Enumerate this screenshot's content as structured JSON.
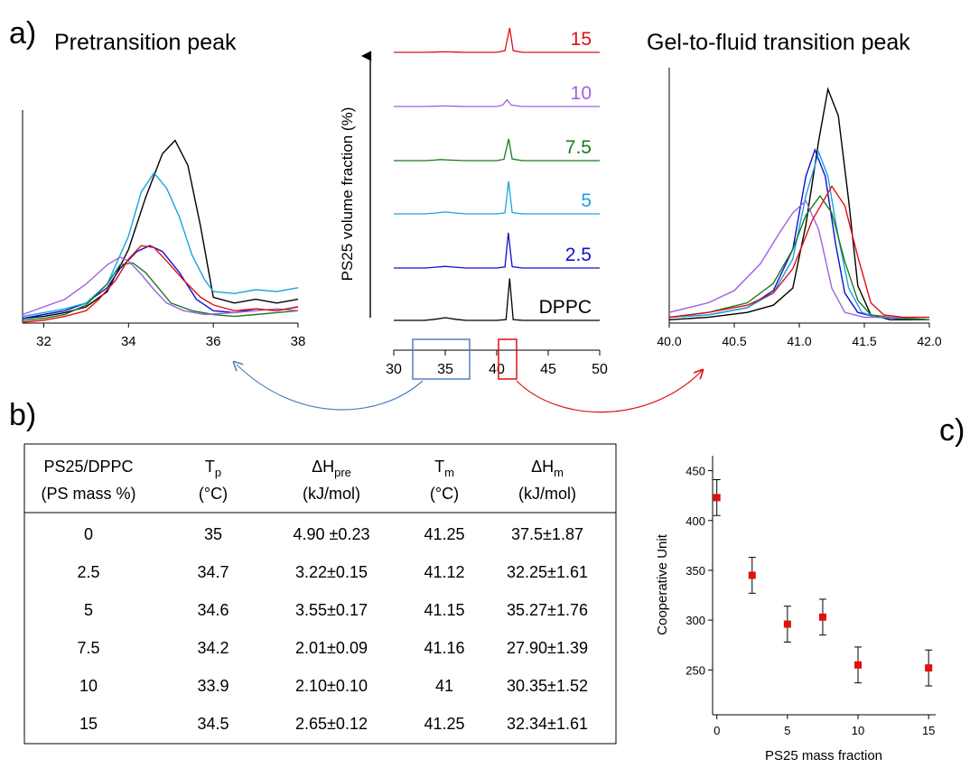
{
  "panels": {
    "a": "a)",
    "b": "b)",
    "c": "c)",
    "pre_title": "Pretransition peak",
    "gel_title": "Gel-to-fluid transition peak"
  },
  "colors": {
    "DPPC": "#000000",
    "2.5": "#1010d0",
    "5": "#1aa3e0",
    "7.5": "#1a7a1a",
    "10": "#a060e0",
    "15": "#e01010",
    "box_pre": "#5080c0",
    "box_gel": "#e01010",
    "marker": "#e01010"
  },
  "chart_data": [
    {
      "id": "pretransition",
      "type": "line",
      "title": "Pretransition peak",
      "xlabel": "",
      "ylabel": "",
      "xlim": [
        31.5,
        38
      ],
      "ylim": [
        0,
        1
      ],
      "xticks": [
        32,
        34,
        36,
        38
      ],
      "series": [
        {
          "name": "DPPC",
          "color": "#000000",
          "x": [
            31.5,
            32,
            32.5,
            33,
            33.5,
            34,
            34.4,
            34.8,
            35.1,
            35.4,
            35.7,
            36,
            36.5,
            37,
            37.5,
            38
          ],
          "y": [
            0.02,
            0.03,
            0.05,
            0.08,
            0.16,
            0.38,
            0.65,
            0.88,
            0.95,
            0.82,
            0.5,
            0.13,
            0.1,
            0.12,
            0.1,
            0.12
          ]
        },
        {
          "name": "2.5",
          "color": "#1010d0",
          "x": [
            31.5,
            32,
            32.5,
            33,
            33.5,
            33.8,
            34.2,
            34.5,
            34.8,
            35.2,
            35.6,
            36,
            36.5,
            37,
            37.5,
            38
          ],
          "y": [
            0.02,
            0.04,
            0.06,
            0.1,
            0.18,
            0.28,
            0.37,
            0.4,
            0.37,
            0.26,
            0.12,
            0.06,
            0.05,
            0.07,
            0.06,
            0.08
          ]
        },
        {
          "name": "5",
          "color": "#1aa3e0",
          "x": [
            31.5,
            32,
            32.5,
            33,
            33.5,
            34,
            34.3,
            34.6,
            34.9,
            35.2,
            35.5,
            35.8,
            36,
            36.5,
            37,
            37.5,
            38
          ],
          "y": [
            0.03,
            0.05,
            0.07,
            0.1,
            0.2,
            0.45,
            0.68,
            0.78,
            0.7,
            0.55,
            0.35,
            0.22,
            0.16,
            0.15,
            0.17,
            0.16,
            0.18
          ]
        },
        {
          "name": "7.5",
          "color": "#1a7a1a",
          "x": [
            31.5,
            32,
            32.5,
            33,
            33.5,
            33.8,
            34.1,
            34.4,
            34.7,
            35,
            35.5,
            36,
            36.5,
            37,
            37.5,
            38
          ],
          "y": [
            0.01,
            0.02,
            0.04,
            0.09,
            0.2,
            0.3,
            0.31,
            0.26,
            0.18,
            0.1,
            0.06,
            0.04,
            0.03,
            0.04,
            0.05,
            0.06
          ]
        },
        {
          "name": "10",
          "color": "#a060e0",
          "x": [
            31.5,
            32,
            32.5,
            33,
            33.5,
            33.8,
            34,
            34.3,
            34.6,
            34.9,
            35.3,
            35.8,
            36.5,
            37,
            37.5,
            38
          ],
          "y": [
            0.04,
            0.08,
            0.12,
            0.2,
            0.3,
            0.34,
            0.32,
            0.25,
            0.17,
            0.1,
            0.06,
            0.04,
            0.05,
            0.06,
            0.07,
            0.06
          ]
        },
        {
          "name": "15",
          "color": "#e01010",
          "x": [
            31.5,
            32,
            32.5,
            33,
            33.3,
            33.7,
            34,
            34.3,
            34.6,
            34.9,
            35.3,
            35.7,
            36,
            36.5,
            37,
            37.5,
            38
          ],
          "y": [
            0.0,
            0.01,
            0.03,
            0.06,
            0.12,
            0.22,
            0.33,
            0.4,
            0.39,
            0.32,
            0.22,
            0.13,
            0.09,
            0.06,
            0.07,
            0.06,
            0.08
          ]
        }
      ]
    },
    {
      "id": "stacked",
      "type": "line",
      "title": "",
      "xlabel": "",
      "ylabel": "PS25 volume fraction (%)",
      "xlim": [
        30,
        50
      ],
      "xticks": [
        30,
        35,
        40,
        45,
        50
      ],
      "offsets": [
        0,
        1,
        2,
        3,
        4,
        5
      ],
      "series": [
        {
          "name": "DPPC",
          "label": "DPPC",
          "color": "#000000",
          "x": [
            30,
            33,
            34,
            35,
            36,
            37,
            40,
            40.9,
            41.25,
            41.6,
            42.5,
            50
          ],
          "y": [
            0,
            0,
            0.04,
            0.1,
            0.04,
            0,
            0,
            0.03,
            1.55,
            0.03,
            0,
            0
          ]
        },
        {
          "name": "2.5",
          "label": "2.5",
          "color": "#1010d0",
          "x": [
            30,
            33,
            34,
            35,
            36,
            37,
            40,
            40.8,
            41.12,
            41.5,
            42.5,
            50
          ],
          "y": [
            0,
            0,
            0.03,
            0.06,
            0.03,
            0,
            0,
            0.04,
            1.3,
            0.05,
            0,
            0
          ]
        },
        {
          "name": "5",
          "label": "5",
          "color": "#1aa3e0",
          "x": [
            30,
            33,
            34,
            35,
            36,
            37,
            40,
            40.8,
            41.15,
            41.5,
            42.5,
            50
          ],
          "y": [
            0,
            0,
            0.03,
            0.07,
            0.03,
            0,
            0,
            0.04,
            1.2,
            0.05,
            0,
            0
          ]
        },
        {
          "name": "7.5",
          "label": "7.5",
          "color": "#1a7a1a",
          "x": [
            30,
            33,
            34,
            34.5,
            35.5,
            37,
            40,
            40.7,
            41.16,
            41.5,
            42.5,
            50
          ],
          "y": [
            0,
            0,
            0.02,
            0.04,
            0.02,
            0,
            0,
            0.05,
            0.8,
            0.06,
            0,
            0
          ]
        },
        {
          "name": "10",
          "label": "10",
          "color": "#a060e0",
          "x": [
            30,
            33,
            34,
            35,
            36,
            37,
            40,
            40.6,
            41,
            41.4,
            42.5,
            50
          ],
          "y": [
            0,
            0,
            0.01,
            0.02,
            0.01,
            0,
            0,
            0.06,
            0.25,
            0.05,
            0,
            0
          ]
        },
        {
          "name": "15",
          "label": "15",
          "color": "#e01010",
          "x": [
            30,
            33,
            34,
            35,
            36,
            37,
            40,
            40.8,
            41.25,
            41.6,
            42.5,
            50
          ],
          "y": [
            0,
            0,
            0.01,
            0.02,
            0.01,
            0,
            0,
            0.06,
            0.9,
            0.06,
            0,
            0
          ]
        }
      ]
    },
    {
      "id": "gel_to_fluid",
      "type": "line",
      "title": "Gel-to-fluid transition peak",
      "xlabel": "",
      "ylabel": "",
      "xlim": [
        40,
        42
      ],
      "ylim": [
        0,
        1
      ],
      "xticks": [
        40.0,
        40.5,
        41.0,
        41.5,
        42.0
      ],
      "series": [
        {
          "name": "DPPC",
          "color": "#000000",
          "x": [
            40,
            40.3,
            40.6,
            40.8,
            40.95,
            41.05,
            41.15,
            41.22,
            41.3,
            41.38,
            41.45,
            41.55,
            41.7,
            42
          ],
          "y": [
            0.01,
            0.02,
            0.04,
            0.07,
            0.14,
            0.4,
            0.75,
            0.96,
            0.85,
            0.5,
            0.15,
            0.03,
            0.01,
            0.01
          ]
        },
        {
          "name": "2.5",
          "color": "#1010d0",
          "x": [
            40,
            40.3,
            40.6,
            40.8,
            40.95,
            41.05,
            41.12,
            41.2,
            41.28,
            41.35,
            41.45,
            41.6,
            42
          ],
          "y": [
            0.02,
            0.03,
            0.06,
            0.13,
            0.3,
            0.6,
            0.71,
            0.6,
            0.32,
            0.12,
            0.04,
            0.02,
            0.01
          ]
        },
        {
          "name": "5",
          "color": "#1aa3e0",
          "x": [
            40,
            40.3,
            40.6,
            40.8,
            40.95,
            41.05,
            41.15,
            41.22,
            41.3,
            41.38,
            41.48,
            41.6,
            42
          ],
          "y": [
            0.02,
            0.03,
            0.06,
            0.12,
            0.26,
            0.52,
            0.7,
            0.6,
            0.35,
            0.14,
            0.04,
            0.02,
            0.01
          ]
        },
        {
          "name": "7.5",
          "color": "#1a7a1a",
          "x": [
            40,
            40.3,
            40.6,
            40.8,
            40.95,
            41.05,
            41.16,
            41.25,
            41.35,
            41.45,
            41.55,
            41.7,
            42
          ],
          "y": [
            0.02,
            0.04,
            0.08,
            0.16,
            0.3,
            0.44,
            0.52,
            0.45,
            0.25,
            0.09,
            0.03,
            0.02,
            0.01
          ]
        },
        {
          "name": "10",
          "color": "#a060e0",
          "x": [
            40,
            40.3,
            40.5,
            40.7,
            40.85,
            40.95,
            41.05,
            41.15,
            41.25,
            41.35,
            41.5,
            42
          ],
          "y": [
            0.04,
            0.08,
            0.13,
            0.24,
            0.37,
            0.45,
            0.5,
            0.38,
            0.14,
            0.04,
            0.02,
            0.02
          ]
        },
        {
          "name": "15",
          "color": "#e01010",
          "x": [
            40,
            40.3,
            40.6,
            40.8,
            40.95,
            41.1,
            41.25,
            41.35,
            41.45,
            41.55,
            41.65,
            41.8,
            42
          ],
          "y": [
            0.02,
            0.04,
            0.07,
            0.12,
            0.22,
            0.42,
            0.56,
            0.48,
            0.27,
            0.08,
            0.03,
            0.02,
            0.02
          ]
        }
      ]
    },
    {
      "id": "cooperative_unit",
      "type": "scatter",
      "title": "",
      "xlabel": "PS25 mass fraction",
      "ylabel": "Cooperative Unit",
      "xlim": [
        -0.3,
        15.5
      ],
      "ylim": [
        205,
        465
      ],
      "xticks": [
        0,
        5,
        10,
        15
      ],
      "yticks": [
        250,
        300,
        350,
        400,
        450
      ],
      "series": [
        {
          "x": [
            0,
            2.5,
            5,
            7.5,
            10,
            15
          ],
          "y": [
            423,
            345,
            296,
            303,
            255,
            252
          ],
          "err": [
            18,
            18,
            18,
            18,
            18,
            18
          ],
          "color": "#e01010"
        }
      ]
    }
  ],
  "table": {
    "headers": [
      {
        "line1": "PS25/DPPC",
        "line2": "(PS mass %)"
      },
      {
        "main": "T",
        "sub": "p",
        "unit": "(°C)"
      },
      {
        "main": "ΔH",
        "sub": "pre",
        "unit": "(kJ/mol)"
      },
      {
        "main": "T",
        "sub": "m",
        "unit": "(°C)"
      },
      {
        "main": "ΔH",
        "sub": "m",
        "unit": "(kJ/mol)"
      }
    ],
    "rows": [
      [
        "0",
        "35",
        "4.90 ±0.23",
        "41.25",
        "37.5±1.87"
      ],
      [
        "2.5",
        "34.7",
        "3.22±0.15",
        "41.12",
        "32.25±1.61"
      ],
      [
        "5",
        "34.6",
        "3.55±0.17",
        "41.15",
        "35.27±1.76"
      ],
      [
        "7.5",
        "34.2",
        "2.01±0.09",
        "41.16",
        "27.90±1.39"
      ],
      [
        "10",
        "33.9",
        "2.10±0.10",
        "41",
        "30.35±1.52"
      ],
      [
        "15",
        "34.5",
        "2.65±0.12",
        "41.25",
        "32.34±1.61"
      ]
    ]
  }
}
